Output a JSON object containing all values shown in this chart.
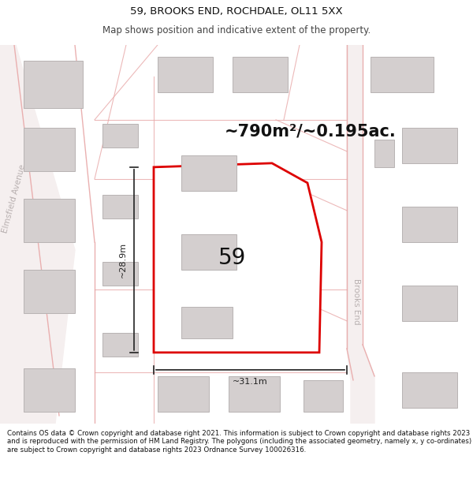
{
  "title": "59, BROOKS END, ROCHDALE, OL11 5XX",
  "subtitle": "Map shows position and indicative extent of the property.",
  "area_label": "~790m²/~0.195ac.",
  "property_number": "59",
  "width_label": "~31.1m",
  "height_label": "~28.9m",
  "footer": "Contains OS data © Crown copyright and database right 2021. This information is subject to Crown copyright and database rights 2023 and is reproduced with the permission of HM Land Registry. The polygons (including the associated geometry, namely x, y co-ordinates) are subject to Crown copyright and database rights 2023 Ordnance Survey 100026316.",
  "map_bg": "#f9f7f7",
  "building_fill": "#d4cfcf",
  "building_edge": "#b8b3b3",
  "highlight_color": "#dd0000",
  "highlight_fill": "#ffffff",
  "road_line_color": "#e8a8a8",
  "street_text_color": "#b8b0b0",
  "dim_line_color": "#222222",
  "title_fontsize": 9.5,
  "subtitle_fontsize": 8.5,
  "area_fontsize": 15,
  "number_fontsize": 20,
  "dim_fontsize": 8,
  "street_fontsize": 7.5,
  "footer_fontsize": 6.2
}
